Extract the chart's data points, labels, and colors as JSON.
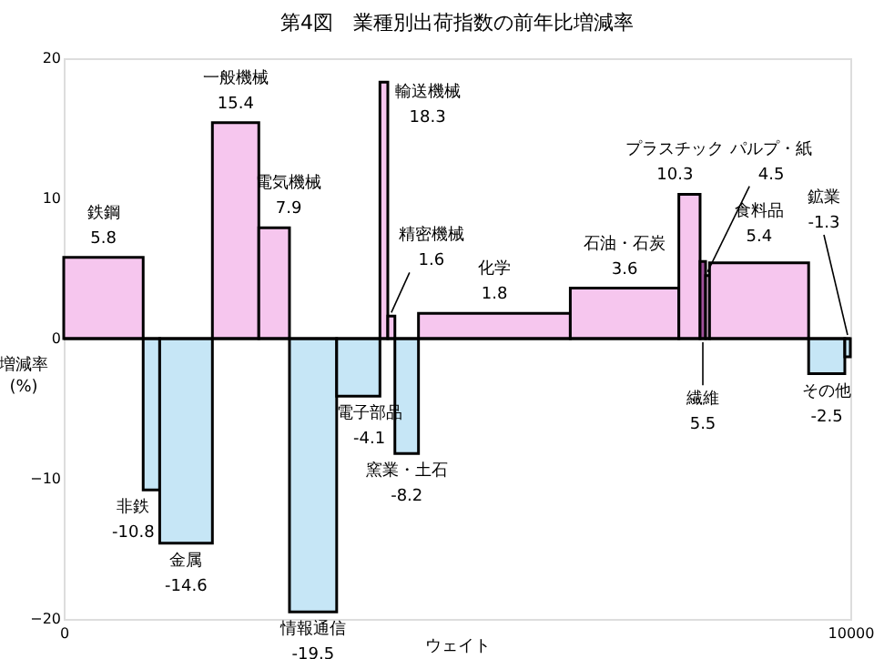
{
  "chart_data": {
    "type": "bar",
    "title": "第4図　業種別出荷指数の前年比増減率",
    "xlabel": "ウェイト",
    "ylabel": "増減率\n(%)",
    "x": [
      505,
      1115,
      1555,
      2185,
      2675,
      3170,
      3745,
      4070,
      4165,
      4360,
      5475,
      7130,
      7955,
      8125,
      8185,
      8840,
      9700,
      9965
    ],
    "values": [
      5.8,
      -10.8,
      -14.6,
      15.4,
      7.9,
      -19.5,
      -4.1,
      18.3,
      1.6,
      -8.2,
      1.8,
      3.6,
      10.3,
      5.5,
      4.5,
      5.4,
      -2.5,
      -1.3
    ],
    "colors": [
      "#f6c6ee",
      "#c6e6f6",
      "#c6e6f6",
      "#f6c6ee",
      "#f6c6ee",
      "#c6e6f6",
      "#c6e6f6",
      "#f6c6ee",
      "#f6c6ee",
      "#c6e6f6",
      "#f6c6ee",
      "#f6c6ee",
      "#f6c6ee",
      "#a0509a",
      "#f6c6ee",
      "#f6c6ee",
      "#c6e6f6",
      "#c6e6f6"
    ],
    "annotations": [
      "鉄鋼",
      "非鉄",
      "金属",
      "一般機械",
      "電気機械",
      "情報通信",
      "電子部品",
      "輸送機械",
      "精密機械",
      "窯業・土石",
      "化学",
      "石油・石炭",
      "プラスチック",
      {
        "text": "繊維",
        "x": 8125,
        "y": 0
      },
      "パルプ・紙",
      "食料品",
      "その他",
      "鉱業",
      {
        "text": "18.3",
        "x": 4070,
        "y": 18.3
      },
      {
        "text": "1.6",
        "x": 4165,
        "y": 1.6
      },
      "5.5",
      {
        "text": "4.5",
        "x": 8185,
        "y": 4.5
      },
      {
        "text": "-1.3",
        "x": 9965,
        "y": 0
      }
    ],
    "value_labels": [
      "5.8",
      "-10.8",
      "-14.6",
      "15.4",
      "7.9",
      "-19.5",
      "-4.1",
      null,
      null,
      "-8.2",
      "1.8",
      "3.6",
      "10.3",
      null,
      null,
      "5.4",
      "-2.5",
      null
    ],
    "ref_lines": [
      {
        "axis": "y",
        "value": 0,
        "color": "#000000"
      }
    ],
    "xlim": [
      0,
      10000
    ],
    "xticks": [
      0,
      10000
    ],
    "ylim": [
      -20,
      20
    ],
    "yticks": [
      -20,
      -10,
      0,
      10,
      20
    ]
  }
}
